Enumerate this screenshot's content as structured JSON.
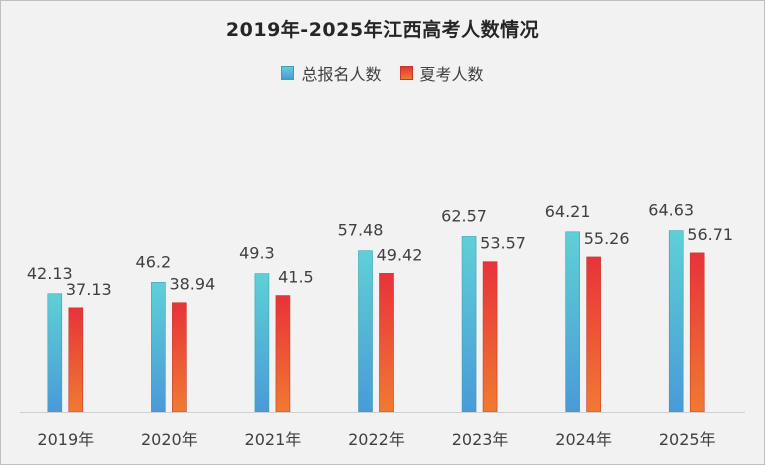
{
  "chart_data": {
    "type": "bar",
    "title": "2019年-2025年江西高考人数情况",
    "categories": [
      "2019年",
      "2020年",
      "2021年",
      "2022年",
      "2023年",
      "2024年",
      "2025年"
    ],
    "series": [
      {
        "name": "总报名人数",
        "values": [
          42.13,
          46.2,
          49.3,
          57.48,
          62.57,
          64.21,
          64.63
        ],
        "labels": [
          "42.13",
          "46.2",
          "49.3",
          "57.48",
          "62.57",
          "64.21",
          "64.63"
        ],
        "color_top": "#5ed0d6",
        "color_bottom": "#4a9ad8"
      },
      {
        "name": "夏考人数",
        "values": [
          37.13,
          38.94,
          41.5,
          49.42,
          53.57,
          55.26,
          56.71
        ],
        "labels": [
          "37.13",
          "38.94",
          "41.5",
          "49.42",
          "53.57",
          "55.26",
          "56.71"
        ],
        "color_top": "#e8323a",
        "color_bottom": "#f07a32"
      }
    ],
    "ylim": [
      0,
      75
    ],
    "grid": false,
    "legend_position": "top-center",
    "background": "#f2f2f2"
  }
}
